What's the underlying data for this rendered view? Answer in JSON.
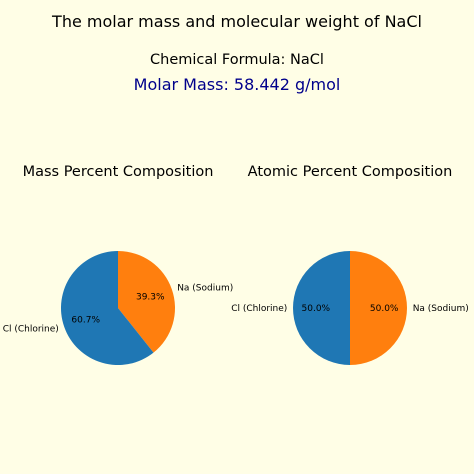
{
  "title": "The molar mass and molecular weight of NaCl",
  "formula_text": "Chemical Formula: NaCl",
  "molar_mass_text": "Molar Mass: 58.442 g/mol",
  "colors": {
    "background": "#fffee6",
    "molar_mass_text": "#00008b",
    "chlorine": "#1f77b4",
    "sodium": "#ff7f0e"
  },
  "chart_data": [
    {
      "type": "pie",
      "title": "Mass Percent Composition",
      "labels": [
        "Na (Sodium)",
        "Cl (Chlorine)"
      ],
      "values": [
        39.3,
        60.7
      ],
      "value_labels": [
        "39.3%",
        "60.7%"
      ],
      "colors": [
        "#ff7f0e",
        "#1f77b4"
      ],
      "start_angle": 90,
      "direction": "clockwise"
    },
    {
      "type": "pie",
      "title": "Atomic Percent Composition",
      "labels": [
        "Na (Sodium)",
        "Cl (Chlorine)"
      ],
      "values": [
        50.0,
        50.0
      ],
      "value_labels": [
        "50.0%",
        "50.0%"
      ],
      "colors": [
        "#ff7f0e",
        "#1f77b4"
      ],
      "start_angle": 90,
      "direction": "clockwise"
    }
  ]
}
